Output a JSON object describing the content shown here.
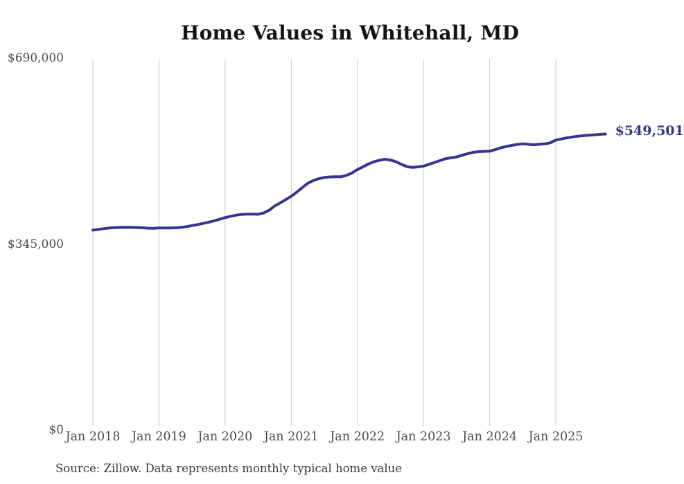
{
  "title": "Home Values in Whitehall, MD",
  "end_label": "$549,501",
  "source_note": "Source: Zillow. Data represents monthly typical home value",
  "colors": {
    "line": "#39338f",
    "end_label": "#39338f",
    "gridline": "#c9c9c9",
    "tick_text": "#4d4d4d",
    "title_text": "#141414",
    "source_text": "#3a3a3a",
    "background": "#ffffff"
  },
  "chart_data": {
    "type": "line",
    "title": "Home Values in Whitehall, MD",
    "xlabel": "",
    "ylabel": "",
    "ylim": [
      0,
      690000
    ],
    "grid": "vertical-yearly-only",
    "legend": "none",
    "y_ticks": [
      {
        "label": "$0",
        "value": 0
      },
      {
        "label": "$345,000",
        "value": 345000
      },
      {
        "label": "$690,000",
        "value": 690000
      }
    ],
    "x_tick_labels": [
      "Jan 2018",
      "Jan 2019",
      "Jan 2020",
      "Jan 2021",
      "Jan 2022",
      "Jan 2023",
      "Jan 2024",
      "Jan 2025"
    ],
    "months_per_x_tick": 12,
    "last_point_label": "$549,501",
    "last_value": 549501,
    "series": [
      {
        "name": "Typical home value",
        "start_month": "2018-01",
        "end_month": "2025-10",
        "values": [
          371000,
          372400,
          373800,
          375000,
          375700,
          376100,
          376200,
          376100,
          375800,
          375300,
          374700,
          374400,
          375200,
          375100,
          375000,
          375300,
          376100,
          377500,
          379300,
          381300,
          383500,
          385800,
          388300,
          391200,
          394300,
          396700,
          398900,
          400300,
          400700,
          400600,
          400500,
          402900,
          408000,
          416000,
          421600,
          427600,
          433900,
          441500,
          450000,
          458000,
          463100,
          466600,
          468800,
          469800,
          470100,
          470100,
          472600,
          477000,
          483400,
          488500,
          493800,
          497900,
          500600,
          502600,
          501000,
          497900,
          493100,
          488900,
          487400,
          488500,
          489800,
          493200,
          496700,
          500200,
          503600,
          505300,
          506900,
          510100,
          513000,
          515500,
          516700,
          517200,
          517500,
          520500,
          523800,
          526300,
          528300,
          530000,
          531200,
          530300,
          529500,
          530300,
          531200,
          533000,
          538200,
          540300,
          542300,
          544000,
          545400,
          546400,
          547200,
          548000,
          548800,
          549501
        ]
      }
    ]
  }
}
